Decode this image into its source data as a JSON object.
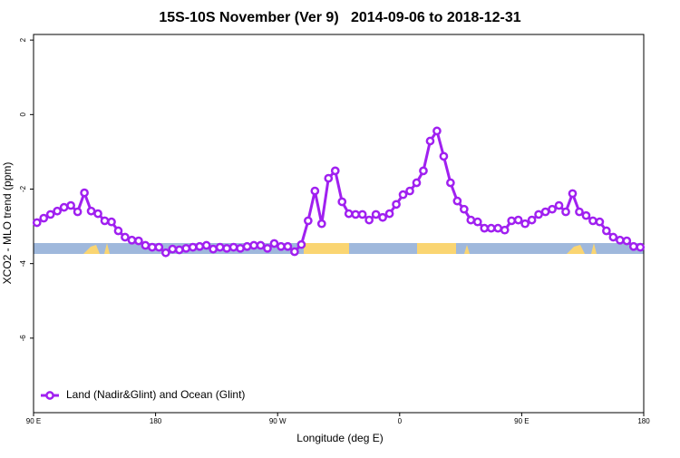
{
  "chart_data": {
    "type": "line",
    "title": "15S-10S November (Ver 9)   2014-09-06 to 2018-12-31",
    "x_label": "Longitude (deg E)",
    "y_label": "XCO2 - MLO trend (ppm)",
    "xlim": [
      90,
      540
    ],
    "ylim": [
      -8,
      2.15
    ],
    "xticks": [
      {
        "value": 90,
        "label": "90 E"
      },
      180,
      {
        "value": 270,
        "label": "90 W"
      },
      {
        "value": 360,
        "label": "0"
      },
      {
        "value": 450,
        "label": "90 E"
      },
      {
        "value": 540,
        "label": "180"
      }
    ],
    "yticks": [
      2,
      0,
      -2,
      -4,
      -6
    ],
    "legend": "bottom-left",
    "x": [
      92.5,
      97.5,
      102.5,
      107.5,
      112.5,
      117.5,
      122.5,
      127.5,
      132.5,
      137.5,
      142.5,
      147.5,
      152.5,
      157.5,
      162.5,
      167.5,
      172.5,
      177.5,
      182.5,
      187.5,
      192.5,
      197.5,
      202.5,
      207.5,
      212.5,
      217.5,
      222.5,
      227.5,
      232.5,
      237.5,
      242.5,
      247.5,
      252.5,
      257.5,
      262.5,
      267.5,
      272.5,
      277.5,
      282.5,
      287.5,
      292.5,
      297.5,
      302.5,
      307.5,
      312.5,
      317.5,
      322.5,
      327.5,
      332.5,
      337.5,
      342.5,
      347.5,
      352.5,
      357.5,
      362.5,
      367.5,
      372.5,
      377.5,
      382.5,
      387.5,
      392.5,
      397.5,
      402.5,
      407.5,
      412.5,
      417.5,
      422.5,
      427.5,
      432.5,
      437.5,
      442.5,
      447.5,
      452.5,
      457.5,
      462.5,
      467.5,
      472.5,
      477.5,
      482.5,
      487.5,
      492.5,
      497.5,
      502.5,
      507.5,
      512.5,
      517.5,
      522.5,
      527.5,
      532.5,
      537.5
    ],
    "series": [
      {
        "name": "Land (Nadir&Glint) and Ocean (Glint)",
        "color": "#a020f0",
        "values": [
          -2.9,
          -2.78,
          -2.68,
          -2.59,
          -2.49,
          -2.44,
          -2.61,
          -2.1,
          -2.59,
          -2.66,
          -2.85,
          -2.88,
          -3.12,
          -3.29,
          -3.37,
          -3.39,
          -3.51,
          -3.56,
          -3.56,
          -3.71,
          -3.61,
          -3.63,
          -3.59,
          -3.56,
          -3.54,
          -3.51,
          -3.61,
          -3.56,
          -3.59,
          -3.56,
          -3.59,
          -3.54,
          -3.51,
          -3.51,
          -3.59,
          -3.46,
          -3.54,
          -3.54,
          -3.68,
          -3.49,
          -2.85,
          -2.05,
          -2.93,
          -1.71,
          -1.51,
          -2.34,
          -2.66,
          -2.68,
          -2.68,
          -2.83,
          -2.68,
          -2.76,
          -2.66,
          -2.41,
          -2.15,
          -2.05,
          -1.83,
          -1.51,
          -0.71,
          -0.44,
          -1.12,
          -1.83,
          -2.32,
          -2.54,
          -2.83,
          -2.88,
          -3.05,
          -3.05,
          -3.05,
          -3.1,
          -2.85,
          -2.83,
          -2.93,
          -2.83,
          -2.68,
          -2.61,
          -2.54,
          -2.44,
          -2.61,
          -2.12,
          -2.61,
          -2.71,
          -2.85,
          -2.88,
          -3.12,
          -3.29,
          -3.37,
          -3.39,
          -3.54,
          -3.56
        ]
      }
    ]
  }
}
